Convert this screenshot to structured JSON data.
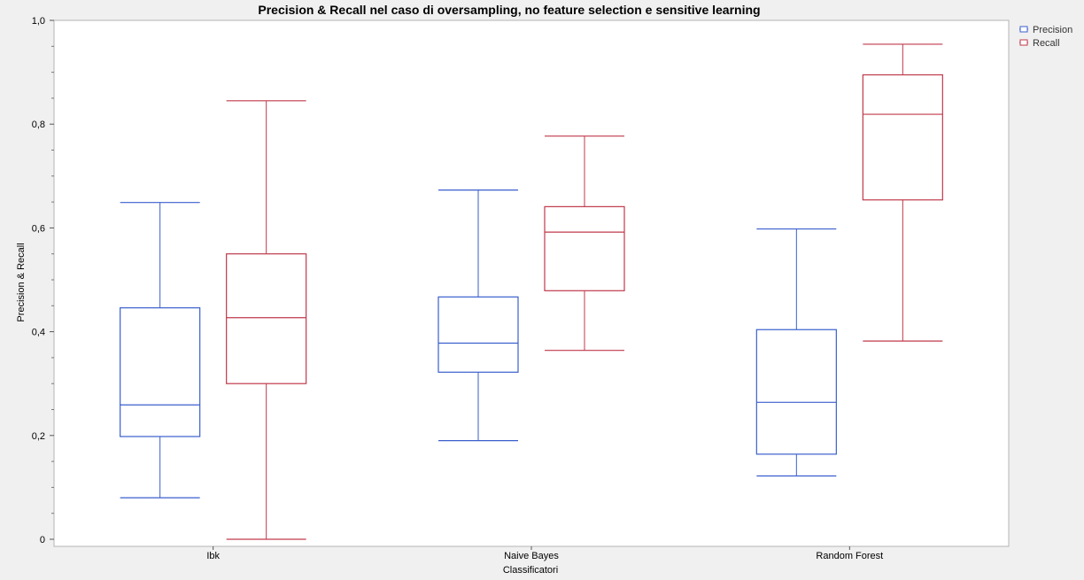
{
  "chart_data": {
    "type": "box",
    "title": "Precision & Recall nel caso di oversampling, no feature selection e sensitive learning",
    "xlabel": "Classificatori",
    "ylabel": "Precision & Recall",
    "ylim": [
      0,
      1
    ],
    "y_ticks": [
      "0",
      "0,2",
      "0,4",
      "0,6",
      "0,8",
      "1,0"
    ],
    "categories": [
      "Ibk",
      "Naive Bayes",
      "Random Forest"
    ],
    "grid": false,
    "legend_position": "top-right",
    "series": [
      {
        "name": "Precision",
        "color": "#3a5fcd",
        "boxes": [
          {
            "min": 0.08,
            "q1": 0.198,
            "median": 0.259,
            "q3": 0.446,
            "max": 0.649
          },
          {
            "min": 0.19,
            "q1": 0.322,
            "median": 0.378,
            "q3": 0.467,
            "max": 0.673
          },
          {
            "min": 0.122,
            "q1": 0.164,
            "median": 0.264,
            "q3": 0.404,
            "max": 0.598
          }
        ]
      },
      {
        "name": "Recall",
        "color": "#c0394b",
        "boxes": [
          {
            "min": 0.0,
            "q1": 0.3,
            "median": 0.427,
            "q3": 0.55,
            "max": 0.845
          },
          {
            "min": 0.364,
            "q1": 0.479,
            "median": 0.592,
            "q3": 0.641,
            "max": 0.777
          },
          {
            "min": 0.382,
            "q1": 0.654,
            "median": 0.819,
            "q3": 0.895,
            "max": 0.954
          }
        ]
      }
    ]
  }
}
